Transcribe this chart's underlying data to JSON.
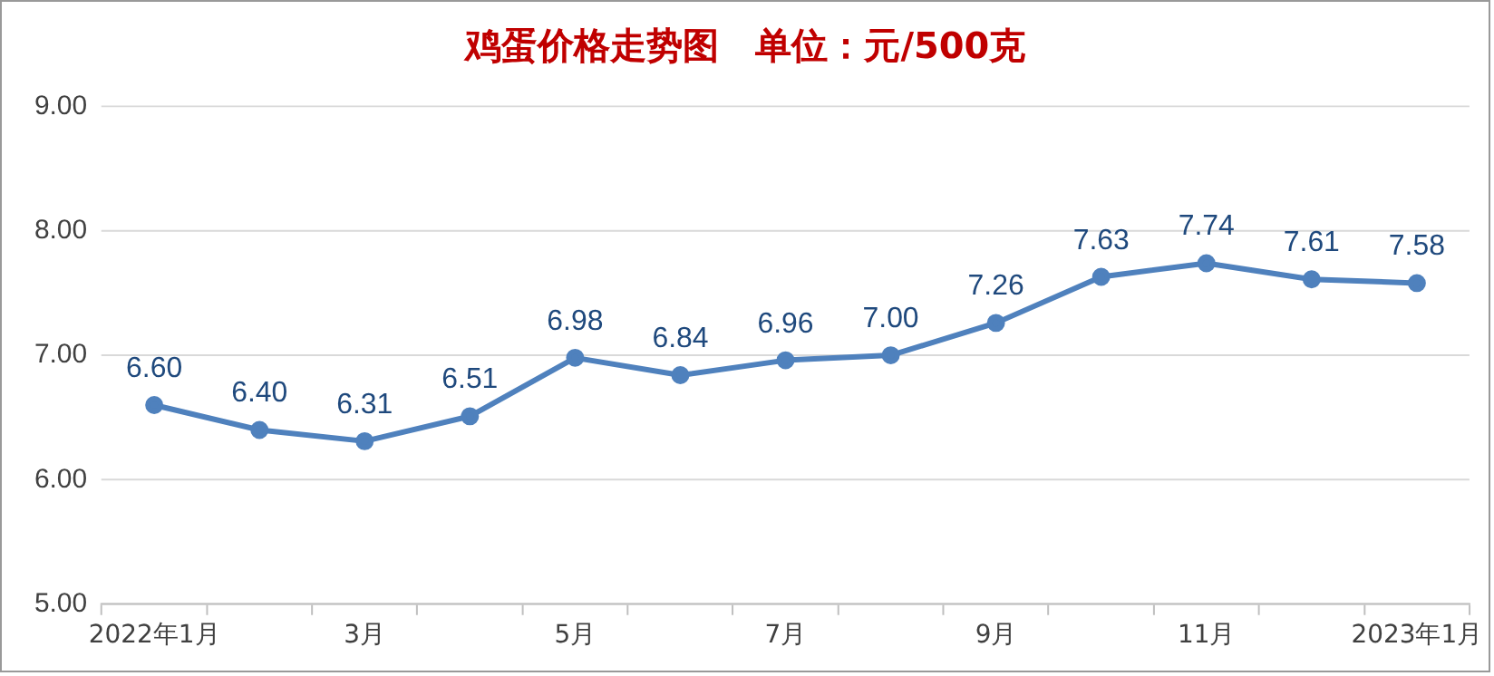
{
  "chart_data": {
    "type": "line",
    "title": "鸡蛋价格走势图　单位：元/500克",
    "categories": [
      "2022年1月",
      null,
      "3月",
      null,
      "5月",
      null,
      "7月",
      null,
      "9月",
      null,
      "11月",
      null,
      "2023年1月"
    ],
    "series": [
      {
        "color": "#4f81bd",
        "values": [
          6.6,
          6.4,
          6.31,
          6.51,
          6.98,
          6.84,
          6.96,
          7.0,
          7.26,
          7.63,
          7.74,
          7.61,
          7.58
        ]
      }
    ],
    "value_labels": [
      "6.60",
      "6.40",
      "6.31",
      "6.51",
      "6.98",
      "6.84",
      "6.96",
      "7.00",
      "7.26",
      "7.63",
      "7.74",
      "7.61",
      "7.58"
    ],
    "ylim": [
      5,
      9
    ],
    "yticks": [
      {
        "value": 5,
        "label": "5.00"
      },
      {
        "value": 6,
        "label": "6.00"
      },
      {
        "value": 7,
        "label": "7.00"
      },
      {
        "value": 8,
        "label": "8.00"
      },
      {
        "value": 9,
        "label": "9.00"
      }
    ],
    "grid": "y",
    "legend": false,
    "marker": "circle",
    "line_style": "solid"
  }
}
